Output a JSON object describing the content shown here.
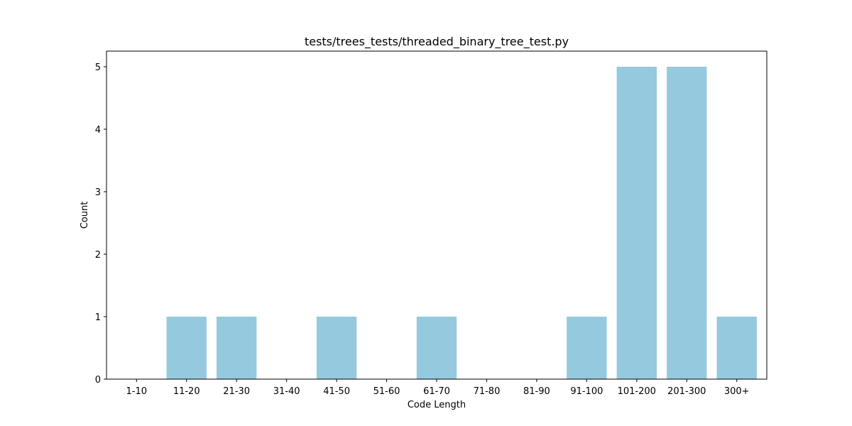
{
  "chart_data": {
    "type": "bar",
    "title": "tests/trees_tests/threaded_binary_tree_test.py",
    "xlabel": "Code Length",
    "ylabel": "Count",
    "categories": [
      "1-10",
      "11-20",
      "21-30",
      "31-40",
      "41-50",
      "51-60",
      "61-70",
      "71-80",
      "81-90",
      "91-100",
      "101-200",
      "201-300",
      "300+"
    ],
    "values": [
      0,
      1,
      1,
      0,
      1,
      0,
      1,
      0,
      0,
      1,
      5,
      5,
      1
    ],
    "yticks": [
      "0",
      "1",
      "2",
      "3",
      "4",
      "5"
    ],
    "ylim": [
      0,
      5.25
    ],
    "bar_color": "#95c9de",
    "grid": false,
    "legend": "none"
  }
}
